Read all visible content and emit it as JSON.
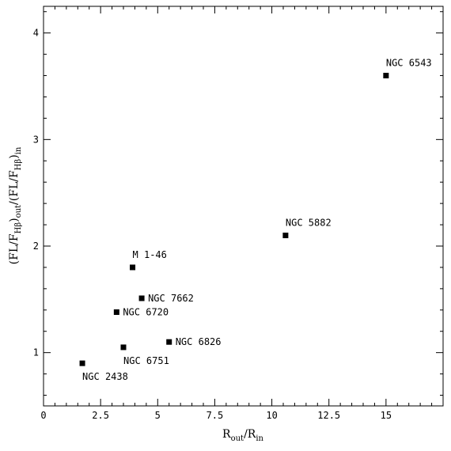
{
  "chart_data": {
    "type": "scatter",
    "title": "",
    "xlabel": {
      "base": "R",
      "sub1": "out",
      "sep": "/R",
      "sub2": "in"
    },
    "ylabel": {
      "p1": "(FL/F",
      "sub1": "Hβ",
      "p2": ")",
      "sub2": "out",
      "p3": "/(FL/F",
      "sub3": "Hβ",
      "p4": ")",
      "sub4": "in"
    },
    "xlim": [
      0,
      17.5
    ],
    "ylim": [
      0.5,
      4.25
    ],
    "xticks": [
      {
        "value": 0,
        "label": "0"
      },
      {
        "value": 2.5,
        "label": "2.5"
      },
      {
        "value": 5,
        "label": "5"
      },
      {
        "value": 7.5,
        "label": "7.5"
      },
      {
        "value": 10,
        "label": "10"
      },
      {
        "value": 12.5,
        "label": "12.5"
      },
      {
        "value": 15,
        "label": "15"
      }
    ],
    "yticks": [
      {
        "value": 1,
        "label": "1"
      },
      {
        "value": 2,
        "label": "2"
      },
      {
        "value": 3,
        "label": "3"
      },
      {
        "value": 4,
        "label": "4"
      }
    ],
    "grid": false,
    "points": [
      {
        "label": "NGC 2438",
        "x": 1.7,
        "y": 0.9,
        "labelPos": "below"
      },
      {
        "label": "NGC 6720",
        "x": 3.2,
        "y": 1.38,
        "labelPos": "right"
      },
      {
        "label": "NGC 6751",
        "x": 3.5,
        "y": 1.05,
        "labelPos": "below"
      },
      {
        "label": "M 1-46",
        "x": 3.9,
        "y": 1.8,
        "labelPos": "above"
      },
      {
        "label": "NGC 7662",
        "x": 4.3,
        "y": 1.51,
        "labelPos": "right"
      },
      {
        "label": "NGC 6826",
        "x": 5.5,
        "y": 1.1,
        "labelPos": "right"
      },
      {
        "label": "NGC 5882",
        "x": 10.6,
        "y": 2.1,
        "labelPos": "above"
      },
      {
        "label": "NGC 6543",
        "x": 15.0,
        "y": 3.6,
        "labelPos": "above"
      }
    ]
  }
}
